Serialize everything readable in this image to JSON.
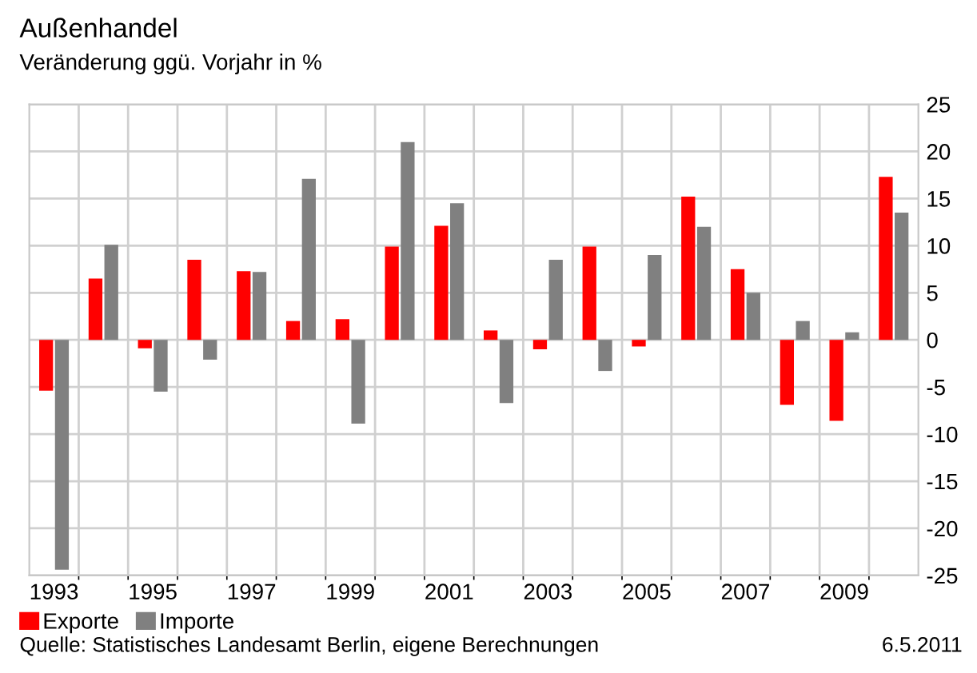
{
  "chart_data": {
    "type": "bar",
    "title": "Außenhandel",
    "subtitle": "Veränderung ggü. Vorjahr in %",
    "categories": [
      "1993",
      null,
      "1995",
      null,
      "1997",
      null,
      "1999",
      null,
      "2001",
      null,
      "2003",
      null,
      "2005",
      null,
      "2007",
      null,
      "2009",
      null
    ],
    "series": [
      {
        "name": "Exporte",
        "color": "#ff0000",
        "values": [
          -5.4,
          6.5,
          -0.9,
          8.5,
          7.3,
          2.0,
          2.2,
          9.9,
          12.1,
          1.0,
          -1.0,
          9.9,
          -0.7,
          15.2,
          7.5,
          -6.9,
          -8.6,
          17.3
        ]
      },
      {
        "name": "Importe",
        "color": "#808080",
        "values": [
          -24.4,
          10.1,
          -5.5,
          -2.1,
          7.2,
          17.1,
          -8.9,
          21.0,
          14.5,
          -6.7,
          8.5,
          -3.3,
          9.0,
          12.0,
          5.0,
          2.0,
          0.8,
          13.5
        ]
      }
    ],
    "ylim": [
      -25,
      25
    ],
    "yticks": [
      -25,
      -20,
      -15,
      -10,
      -5,
      0,
      5,
      10,
      15,
      20,
      25
    ],
    "grid": true,
    "legend": "bottom left",
    "annotations": [
      "Quelle: Statistisches Landesamt Berlin, eigene Berechnungen",
      "6.5.2011"
    ]
  }
}
